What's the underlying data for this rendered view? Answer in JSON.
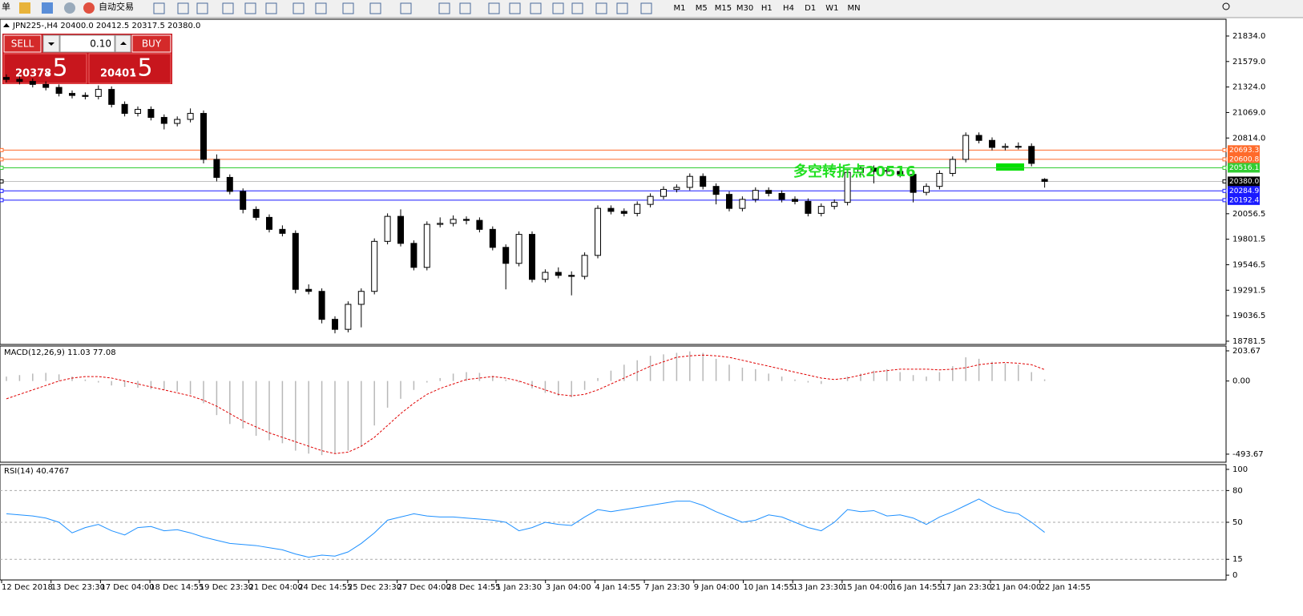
{
  "toolbar": {
    "menu": "单",
    "auto_trade": "自动交易",
    "timeframes": [
      "M1",
      "M5",
      "M15",
      "M30",
      "H1",
      "H4",
      "D1",
      "W1",
      "MN"
    ]
  },
  "trade_panel": {
    "sell": "SELL",
    "buy": "BUY",
    "lot": "0.10",
    "sell_big": "20378",
    "sell_frac": ".5",
    "buy_big": "20401",
    "buy_frac": ".5"
  },
  "main_chart": {
    "title": "JPN225-,H4  20400.0 20412.5 20317.5 20380.0",
    "ylim": [
      18749,
      22002
    ],
    "yticks": [
      {
        "value": 21834,
        "label": "21834.0"
      },
      {
        "value": 21579,
        "label": "21579.0"
      },
      {
        "value": 21324,
        "label": "21324.0"
      },
      {
        "value": 21069,
        "label": "21069.0"
      },
      {
        "value": 20814,
        "label": "20814.0"
      },
      20056.5,
      19801.5,
      19546.5,
      19291.5,
      19036.5,
      18781.5
    ],
    "levels": [
      {
        "value": 20693.3,
        "color": "#ff6a2a"
      },
      {
        "value": 20600.8,
        "color": "#ff6a2a"
      },
      {
        "value": 20516.1,
        "color": "#32cd32"
      },
      {
        "value": 20380,
        "label": "20380.0",
        "color": "#000000"
      },
      {
        "value": 20284.9,
        "color": "#1a1aff"
      },
      {
        "value": 20192.4,
        "color": "#1a1aff"
      }
    ],
    "annotation": "多空转折点20516",
    "candles": [
      [
        21420,
        21450,
        21370,
        21400
      ],
      [
        21400,
        21430,
        21350,
        21380
      ],
      [
        21380,
        21410,
        21320,
        21350
      ],
      [
        21350,
        21380,
        21290,
        21320
      ],
      [
        21320,
        21350,
        21230,
        21260
      ],
      [
        21260,
        21290,
        21210,
        21240
      ],
      [
        21240,
        21270,
        21200,
        21230
      ],
      [
        21230,
        21340,
        21200,
        21300
      ],
      [
        21300,
        21330,
        21120,
        21150
      ],
      [
        21150,
        21180,
        21030,
        21060
      ],
      [
        21060,
        21130,
        21030,
        21100
      ],
      [
        21100,
        21130,
        20990,
        21020
      ],
      [
        21020,
        21050,
        20900,
        20960
      ],
      [
        20960,
        21030,
        20930,
        21000
      ],
      [
        21000,
        21110,
        20970,
        21060
      ],
      [
        21060,
        21090,
        20560,
        20600
      ],
      [
        20600,
        20650,
        20380,
        20420
      ],
      [
        20420,
        20450,
        20250,
        20280
      ],
      [
        20280,
        20310,
        20060,
        20100
      ],
      [
        20100,
        20130,
        19990,
        20020
      ],
      [
        20020,
        20050,
        19870,
        19900
      ],
      [
        19900,
        19940,
        19830,
        19860
      ],
      [
        19860,
        19890,
        19260,
        19300
      ],
      [
        19300,
        19350,
        19250,
        19280
      ],
      [
        19280,
        19310,
        18960,
        19000
      ],
      [
        19000,
        19030,
        18860,
        18900
      ],
      [
        18900,
        19180,
        18870,
        19150
      ],
      [
        19150,
        19310,
        18920,
        19280
      ],
      [
        19280,
        19810,
        19250,
        19780
      ],
      [
        19780,
        20060,
        19750,
        20030
      ],
      [
        20030,
        20100,
        19730,
        19760
      ],
      [
        19760,
        19790,
        19490,
        19520
      ],
      [
        19520,
        19980,
        19490,
        19950
      ],
      [
        19950,
        20020,
        19920,
        19960
      ],
      [
        19960,
        20040,
        19930,
        20000
      ],
      [
        20000,
        20030,
        19950,
        19990
      ],
      [
        19990,
        20020,
        19870,
        19900
      ],
      [
        19900,
        19930,
        19690,
        19720
      ],
      [
        19720,
        19750,
        19300,
        19560
      ],
      [
        19560,
        19880,
        19530,
        19850
      ],
      [
        19850,
        19880,
        19370,
        19400
      ],
      [
        19400,
        19500,
        19370,
        19470
      ],
      [
        19470,
        19520,
        19410,
        19440
      ],
      [
        19440,
        19480,
        19240,
        19430
      ],
      [
        19430,
        19670,
        19400,
        19640
      ],
      [
        19640,
        20140,
        19610,
        20110
      ],
      [
        20110,
        20140,
        20050,
        20080
      ],
      [
        20080,
        20110,
        20030,
        20060
      ],
      [
        20060,
        20180,
        20030,
        20150
      ],
      [
        20150,
        20260,
        20120,
        20230
      ],
      [
        20230,
        20330,
        20200,
        20300
      ],
      [
        20300,
        20350,
        20270,
        20320
      ],
      [
        20320,
        20460,
        20290,
        20430
      ],
      [
        20430,
        20460,
        20300,
        20330
      ],
      [
        20330,
        20360,
        20150,
        20250
      ],
      [
        20250,
        20280,
        20080,
        20110
      ],
      [
        20110,
        20230,
        20080,
        20200
      ],
      [
        20200,
        20320,
        20170,
        20290
      ],
      [
        20290,
        20320,
        20230,
        20260
      ],
      [
        20260,
        20290,
        20170,
        20200
      ],
      [
        20200,
        20230,
        20150,
        20180
      ],
      [
        20180,
        20210,
        20030,
        20060
      ],
      [
        20060,
        20160,
        20030,
        20130
      ],
      [
        20130,
        20200,
        20100,
        20170
      ],
      [
        20170,
        20500,
        20140,
        20470
      ],
      [
        20470,
        20540,
        20440,
        20510
      ],
      [
        20510,
        20540,
        20360,
        20480
      ],
      [
        20480,
        20520,
        20450,
        20490
      ],
      [
        20480,
        20500,
        20420,
        20450
      ],
      [
        20450,
        20480,
        20170,
        20270
      ],
      [
        20270,
        20360,
        20240,
        20330
      ],
      [
        20330,
        20490,
        20300,
        20460
      ],
      [
        20460,
        20630,
        20430,
        20600
      ],
      [
        20600,
        20870,
        20570,
        20840
      ],
      [
        20840,
        20870,
        20760,
        20790
      ],
      [
        20790,
        20820,
        20690,
        20720
      ],
      [
        20720,
        20760,
        20690,
        20730
      ],
      [
        20730,
        20770,
        20700,
        20730
      ],
      [
        20730,
        20760,
        20530,
        20560
      ],
      [
        20400,
        20412.5,
        20317.5,
        20380
      ]
    ]
  },
  "macd": {
    "title": "MACD(12,26,9) 11.03 77.08",
    "ylim": [
      -548,
      236
    ],
    "yticks": [
      203.67,
      {
        "value": 0,
        "label": "0.00"
      },
      -493.67
    ],
    "main": [
      30,
      40,
      50,
      55,
      45,
      30,
      10,
      -10,
      -30,
      -40,
      -45,
      -55,
      -60,
      -70,
      -90,
      -150,
      -230,
      -290,
      -320,
      -370,
      -400,
      -420,
      -470,
      -490,
      -500,
      -490,
      -470,
      -440,
      -300,
      -180,
      -120,
      -60,
      -10,
      20,
      50,
      60,
      55,
      35,
      10,
      -10,
      -50,
      -80,
      -100,
      -110,
      -60,
      20,
      70,
      110,
      140,
      170,
      180,
      190,
      200,
      190,
      150,
      110,
      90,
      80,
      50,
      30,
      10,
      -10,
      -20,
      0,
      30,
      50,
      70,
      80,
      60,
      40,
      30,
      60,
      100,
      160,
      150,
      130,
      120,
      110,
      60,
      11.03
    ],
    "signal": [
      -120,
      -90,
      -60,
      -30,
      0,
      20,
      30,
      30,
      20,
      0,
      -20,
      -40,
      -60,
      -80,
      -100,
      -130,
      -170,
      -220,
      -270,
      -310,
      -350,
      -380,
      -410,
      -440,
      -470,
      -490,
      -480,
      -440,
      -380,
      -300,
      -220,
      -150,
      -90,
      -50,
      -20,
      10,
      20,
      30,
      20,
      0,
      -30,
      -60,
      -90,
      -100,
      -90,
      -60,
      -20,
      20,
      60,
      100,
      130,
      160,
      170,
      175,
      170,
      160,
      140,
      120,
      100,
      80,
      60,
      40,
      20,
      10,
      20,
      40,
      60,
      70,
      80,
      80,
      80,
      75,
      80,
      90,
      110,
      120,
      125,
      120,
      110,
      77.08
    ]
  },
  "rsi": {
    "title": "RSI(14) 40.4767",
    "ylim": [
      -4.5,
      104.5
    ],
    "yticks": [
      100,
      80,
      50,
      15,
      0
    ],
    "levels": [
      80,
      50,
      15
    ],
    "values": [
      58,
      57,
      56,
      54,
      50,
      40,
      45,
      48,
      42,
      38,
      45,
      46,
      42,
      43,
      40,
      36,
      33,
      30,
      29,
      28,
      26,
      24,
      20,
      17,
      19,
      18,
      22,
      30,
      40,
      52,
      55,
      58,
      56,
      55,
      55,
      54,
      53,
      52,
      50,
      42,
      45,
      50,
      48,
      47,
      55,
      62,
      60,
      62,
      64,
      66,
      68,
      70,
      70,
      66,
      60,
      55,
      50,
      52,
      57,
      55,
      50,
      45,
      42,
      50,
      62,
      60,
      61,
      56,
      57,
      54,
      48,
      55,
      60,
      66,
      72,
      65,
      60,
      58,
      50,
      40.4767
    ]
  },
  "x_labels": [
    "12 Dec 2018",
    "13 Dec 23:30",
    "17 Dec 04:00",
    "18 Dec 14:55",
    "19 Dec 23:30",
    "21 Dec 04:00",
    "24 Dec 14:55",
    "25 Dec 23:30",
    "27 Dec 04:00",
    "28 Dec 14:55",
    "1 Jan 23:30",
    "3 Jan 04:00",
    "4 Jan 14:55",
    "7 Jan 23:30",
    "9 Jan 04:00",
    "10 Jan 14:55",
    "13 Jan 23:30",
    "15 Jan 04:00",
    "16 Jan 14:55",
    "17 Jan 23:30",
    "21 Jan 04:00",
    "22 Jan 14:55"
  ]
}
